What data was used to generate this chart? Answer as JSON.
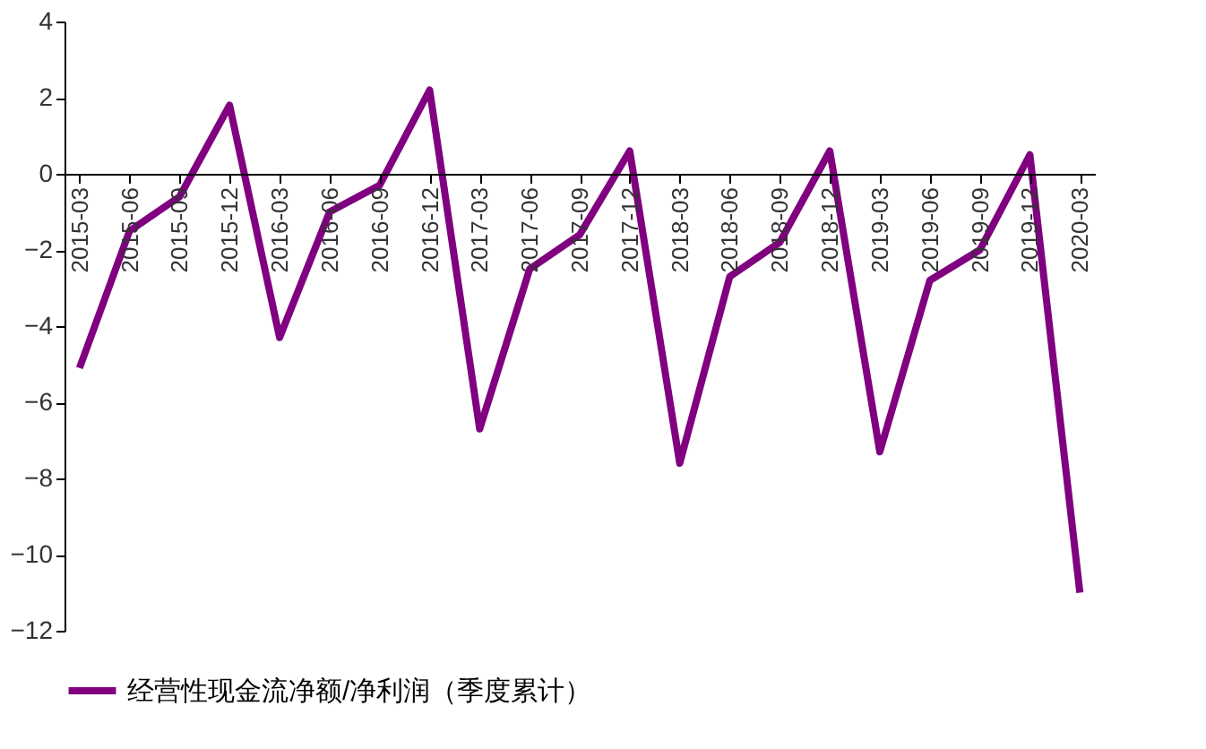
{
  "chart_data": {
    "type": "line",
    "categories": [
      "2015-03",
      "2015-06",
      "2015-09",
      "2015-12",
      "2016-03",
      "2016-06",
      "2016-09",
      "2016-12",
      "2017-03",
      "2017-06",
      "2017-09",
      "2017-12",
      "2018-03",
      "2018-06",
      "2018-09",
      "2018-12",
      "2019-03",
      "2019-06",
      "2019-09",
      "2019-12",
      "2020-03"
    ],
    "series": [
      {
        "name": "经营性现金流净额/净利润（季度累计）",
        "color": "#800080",
        "values": [
          -5.1,
          -1.5,
          -0.6,
          1.8,
          -4.3,
          -1.0,
          -0.3,
          2.2,
          -6.7,
          -2.5,
          -1.6,
          0.6,
          -7.6,
          -2.7,
          -1.8,
          0.6,
          -7.3,
          -2.8,
          -2.0,
          0.5,
          -11.0
        ]
      }
    ],
    "ylim": [
      -12,
      4
    ],
    "yticks": [
      -12,
      -10,
      -8,
      -6,
      -4,
      -2,
      0,
      2,
      4
    ],
    "grid": false,
    "legend": "bottom",
    "marker": "none",
    "line_style": "solid"
  }
}
